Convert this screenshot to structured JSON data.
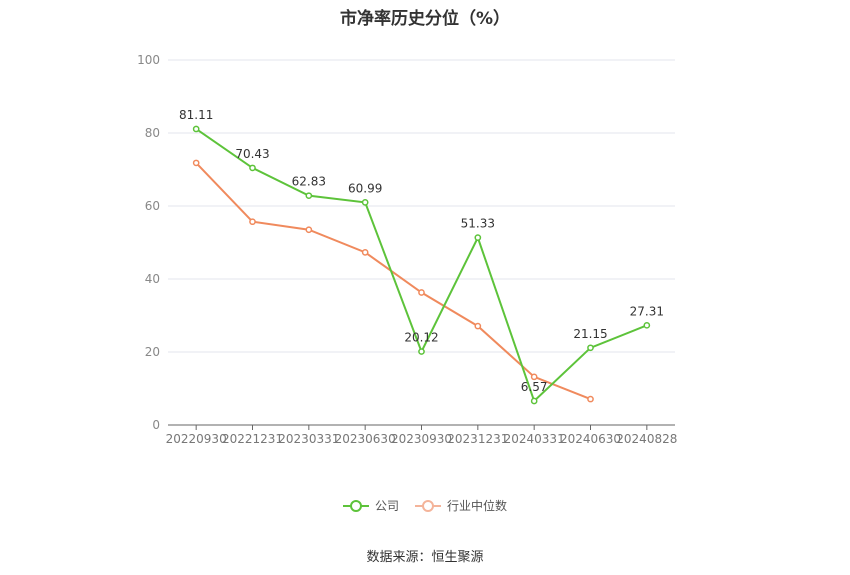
{
  "title": "市净率历史分位（%）",
  "source": "数据来源：恒生聚源",
  "chart_data": {
    "type": "line",
    "categories": [
      "20220930",
      "20221231",
      "20230331",
      "20230630",
      "20230930",
      "20231231",
      "20240331",
      "20240630",
      "20240828"
    ],
    "ylim": [
      0,
      100
    ],
    "yticks": [
      0,
      20,
      40,
      60,
      80,
      100
    ],
    "grid": true,
    "legend_position": "bottom",
    "series": [
      {
        "name": "公司",
        "color": "#5dc33a",
        "values": [
          81.11,
          70.43,
          62.83,
          60.99,
          20.12,
          51.33,
          6.57,
          21.15,
          27.31
        ],
        "labels": [
          "81.11",
          "70.43",
          "62.83",
          "60.99",
          "20.12",
          "51.33",
          "6.57",
          "21.15",
          "27.31"
        ]
      },
      {
        "name": "行业中位数",
        "color": "#f08a5d",
        "values": [
          71.8,
          55.7,
          53.5,
          47.3,
          36.3,
          27.1,
          13.2,
          7.1,
          null
        ]
      }
    ]
  }
}
